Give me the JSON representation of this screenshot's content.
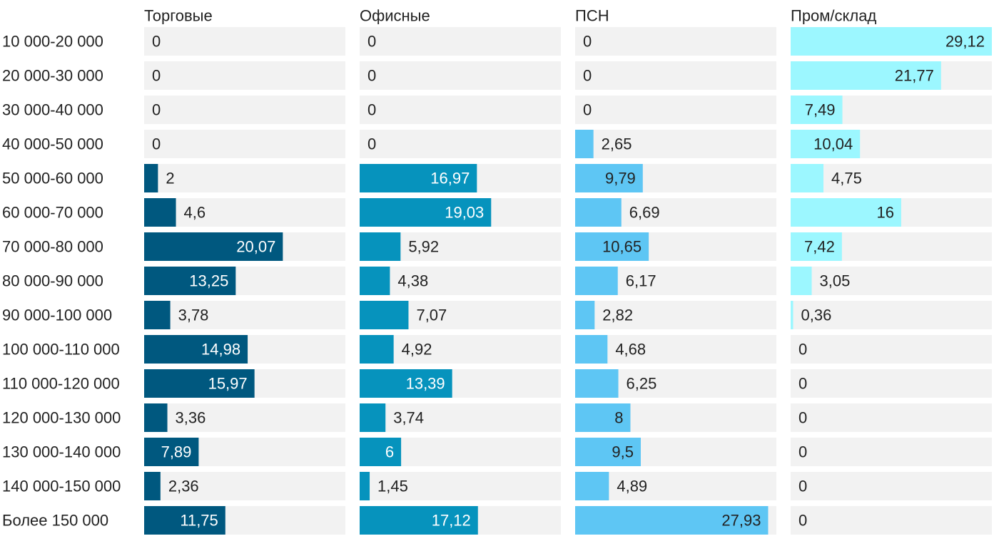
{
  "chart_data": {
    "type": "bar",
    "orientation": "horizontal",
    "layout": "small-multiples",
    "categories": [
      "10 000-20 000",
      "20 000-30 000",
      "30 000-40 000",
      "40 000-50 000",
      "50 000-60 000",
      "60 000-70 000",
      "70 000-80 000",
      "80 000-90 000",
      "90 000-100 000",
      "100 000-110 000",
      "110 000-120 000",
      "120 000-130 000",
      "130 000-140 000",
      "140 000-150 000",
      "Более 150 000"
    ],
    "series": [
      {
        "name": "Торговые",
        "color": "#00587f",
        "values": [
          0,
          0,
          0,
          0,
          2,
          4.6,
          20.07,
          13.25,
          3.78,
          14.98,
          15.97,
          3.36,
          7.89,
          2.36,
          11.75
        ],
        "labels": [
          "0",
          "0",
          "0",
          "0",
          "2",
          "4,6",
          "20,07",
          "13,25",
          "3,78",
          "14,98",
          "15,97",
          "3,36",
          "7,89",
          "2,36",
          "11,75"
        ]
      },
      {
        "name": "Офисные",
        "color": "#0693bd",
        "values": [
          0,
          0,
          0,
          0,
          16.97,
          19.03,
          5.92,
          4.38,
          7.07,
          4.92,
          13.39,
          3.74,
          6,
          1.45,
          17.12
        ],
        "labels": [
          "0",
          "0",
          "0",
          "0",
          "16,97",
          "19,03",
          "5,92",
          "4,38",
          "7,07",
          "4,92",
          "13,39",
          "3,74",
          "6",
          "1,45",
          "17,12"
        ]
      },
      {
        "name": "ПСН",
        "color": "#5ec6f4",
        "values": [
          0,
          0,
          0,
          2.65,
          9.79,
          6.69,
          10.65,
          6.17,
          2.82,
          4.68,
          6.25,
          8,
          9.5,
          4.89,
          27.93
        ],
        "labels": [
          "0",
          "0",
          "0",
          "2,65",
          "9,79",
          "6,69",
          "10,65",
          "6,17",
          "2,82",
          "4,68",
          "6,25",
          "8",
          "9,5",
          "4,89",
          "27,93"
        ]
      },
      {
        "name": "Пром/склад",
        "color": "#9cf7ff",
        "values": [
          29.12,
          21.77,
          7.49,
          10.04,
          4.75,
          16,
          7.42,
          3.05,
          0.36,
          0,
          0,
          0,
          0,
          0,
          0
        ],
        "labels": [
          "29,12",
          "21,77",
          "7,49",
          "10,04",
          "4,75",
          "16",
          "7,42",
          "3,05",
          "0,36",
          "0",
          "0",
          "0",
          "0",
          "0",
          "0"
        ]
      }
    ],
    "track_color": "#f2f2f2",
    "grid": false,
    "legend": "none"
  }
}
